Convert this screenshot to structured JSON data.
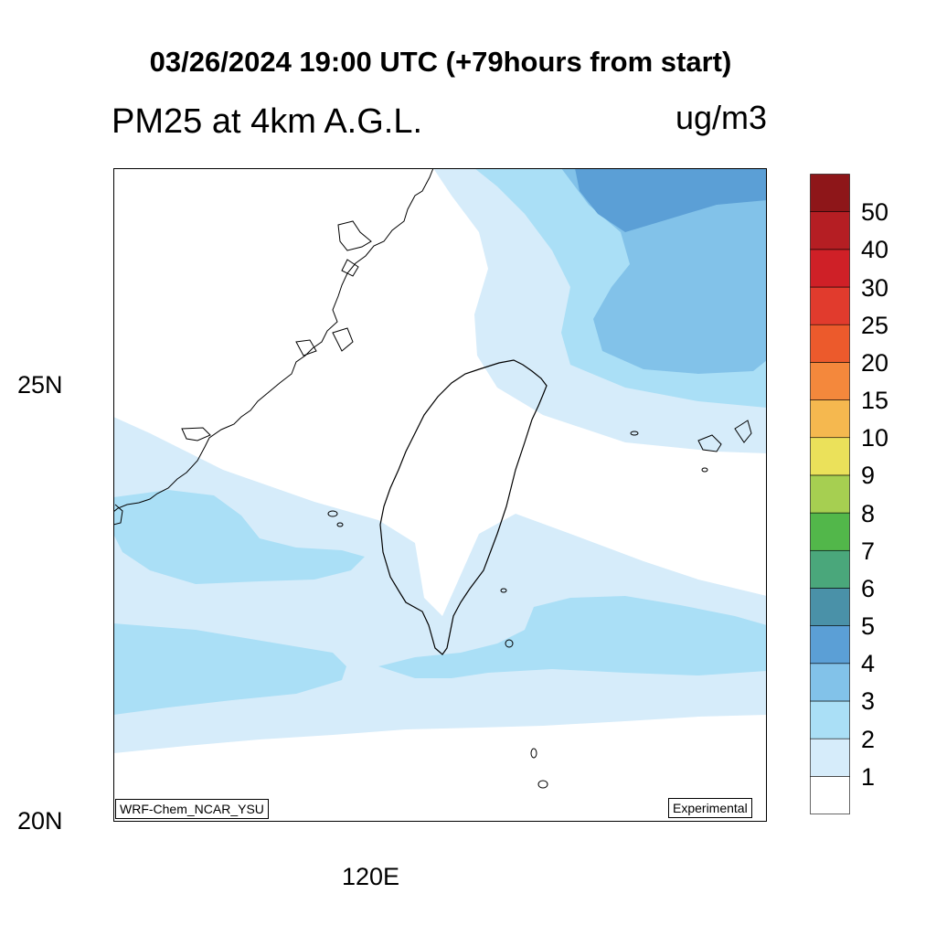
{
  "title": "03/26/2024 19:00 UTC (+79hours from start)",
  "variable_title": "PM25 at 4km A.G.L.",
  "units": "ug/m3",
  "latitude_labels": [
    "25N",
    "20N"
  ],
  "longitude_labels": [
    "120E"
  ],
  "model_label": "WRF-Chem_NCAR_YSU",
  "status_label": "Experimental",
  "colorbar": {
    "labels": [
      "1",
      "2",
      "3",
      "4",
      "5",
      "6",
      "7",
      "8",
      "9",
      "10",
      "15",
      "20",
      "25",
      "30",
      "40",
      "50"
    ],
    "colors": [
      "#ffffff",
      "#d6ecfa",
      "#aadff6",
      "#82c2e9",
      "#5b9fd6",
      "#4a91a8",
      "#4aa77b",
      "#52b74a",
      "#a6cf51",
      "#ebe15a",
      "#f5b84f",
      "#f4883c",
      "#ec5a2c",
      "#e13b2d",
      "#cf2027",
      "#b51e23",
      "#8e1619"
    ]
  },
  "field_colors": {
    "level_1_2": "#d6ecfa",
    "level_2_3": "#aadff6",
    "level_3_4": "#82c2e9",
    "level_4_5": "#5b9fd6"
  }
}
